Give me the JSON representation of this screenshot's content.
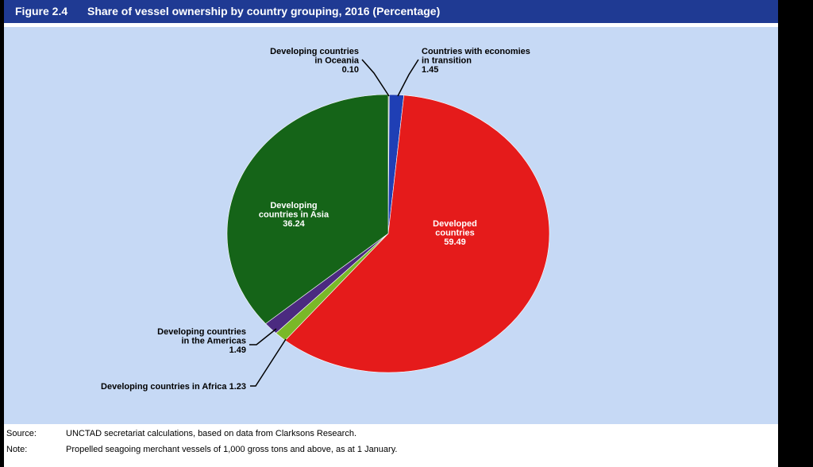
{
  "figure": {
    "label": "Figure 2.4",
    "title": "Share of vessel ownership by country grouping, 2016 (Percentage)"
  },
  "notes": {
    "source_key": "Source:",
    "source_text": "UNCTAD secretariat calculations, based on data from Clarksons Research.",
    "note_key": "Note:",
    "note_text": "Propelled seagoing merchant vessels of 1,000 gross tons and above, as at 1 January."
  },
  "chart_data": {
    "type": "pie",
    "title": "Share of vessel ownership by country grouping, 2016 (Percentage)",
    "slices": [
      {
        "label_lines": [
          "Developing countries",
          "in Oceania"
        ],
        "value_text": "0.10",
        "value": 0.1,
        "color": "#8c9a7a"
      },
      {
        "label_lines": [
          "Countries with economies",
          "in transition"
        ],
        "value_text": "1.45",
        "value": 1.45,
        "color": "#1f3fb5"
      },
      {
        "label_lines": [
          "Developed",
          "countries"
        ],
        "value_text": "59.49",
        "value": 59.49,
        "color": "#e51b1b"
      },
      {
        "label_lines": [
          "Developing countries in Africa 1.23"
        ],
        "value_text": "",
        "value": 1.23,
        "color": "#7ab828"
      },
      {
        "label_lines": [
          "Developing countries",
          "in the Americas"
        ],
        "value_text": "1.49",
        "value": 1.49,
        "color": "#4b2a80"
      },
      {
        "label_lines": [
          "Developing",
          "countries in Asia"
        ],
        "value_text": "36.24",
        "value": 36.24,
        "color": "#156418"
      }
    ]
  }
}
